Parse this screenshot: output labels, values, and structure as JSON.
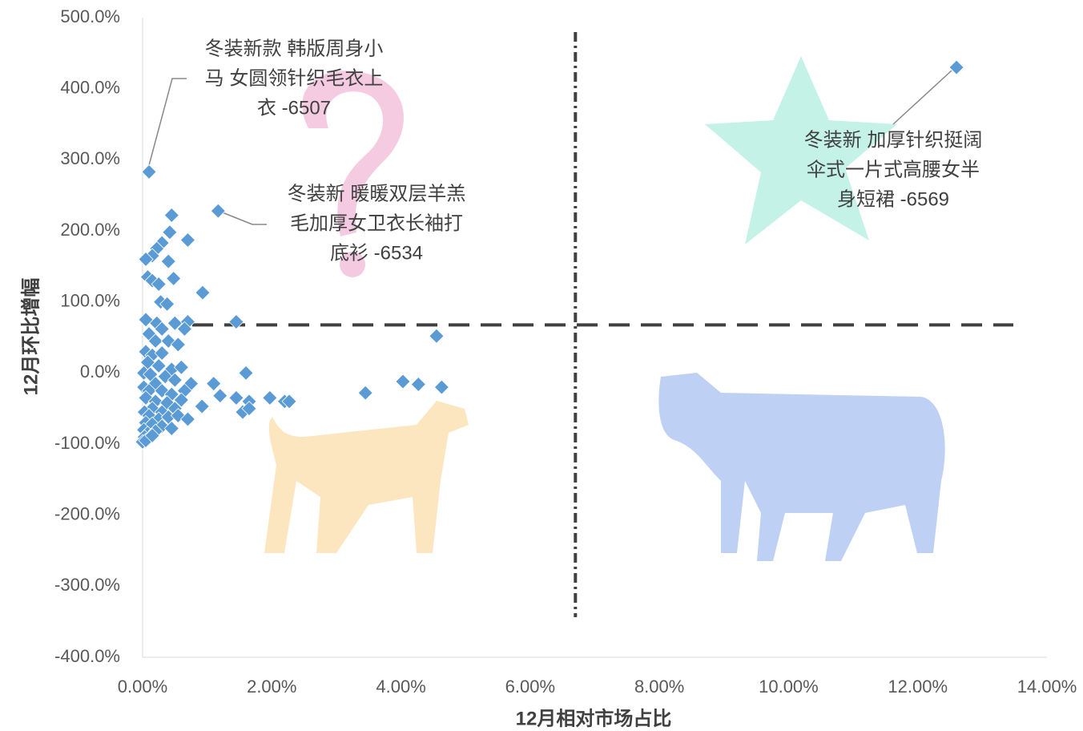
{
  "chart_data": {
    "type": "scatter",
    "xlabel": "12月相对市场占比",
    "ylabel": "12月环比增幅",
    "xlim": [
      0,
      14
    ],
    "ylim": [
      -400,
      500
    ],
    "xticks": [
      {
        "value": 0,
        "label": "0.00%"
      },
      {
        "value": 2,
        "label": "2.00%"
      },
      {
        "value": 4,
        "label": "4.00%"
      },
      {
        "value": 6,
        "label": "6.00%"
      },
      {
        "value": 8,
        "label": "8.00%"
      },
      {
        "value": 10,
        "label": "10.00%"
      },
      {
        "value": 12,
        "label": "12.00%"
      },
      {
        "value": 14,
        "label": "14.00%"
      }
    ],
    "yticks": [
      {
        "value": -400,
        "label": "-400.0%"
      },
      {
        "value": -300,
        "label": "-300.0%"
      },
      {
        "value": -200,
        "label": "-200.0%"
      },
      {
        "value": -100,
        "label": "-100.0%"
      },
      {
        "value": 0,
        "label": "0.0%"
      },
      {
        "value": 100,
        "label": "100.0%"
      },
      {
        "value": 200,
        "label": "200.0%"
      },
      {
        "value": 300,
        "label": "300.0%"
      },
      {
        "value": 400,
        "label": "400.0%"
      },
      {
        "value": 500,
        "label": "500.0%"
      }
    ],
    "color": "#5b9bd5",
    "reference_lines": {
      "x": 6.7,
      "y": 67.6
    },
    "x": [
      0.1,
      1.17,
      0.45,
      0.42,
      0.7,
      0.3,
      0.22,
      0.15,
      0.05,
      0.4,
      0.08,
      0.15,
      0.48,
      0.25,
      0.93,
      0.28,
      0.38,
      1.45,
      0.05,
      0.22,
      0.3,
      0.5,
      0.7,
      0.65,
      0.1,
      0.2,
      0.4,
      0.55,
      0.05,
      0.15,
      0.3,
      0.08,
      0.25,
      0.45,
      0.6,
      4.55,
      0.02,
      0.12,
      1.6,
      0.35,
      0.5,
      0.75,
      1.1,
      4.03,
      4.27,
      4.63,
      0.2,
      0.02,
      0.1,
      0.3,
      0.65,
      1.2,
      1.45,
      1.97,
      3.45,
      0.45,
      0.05,
      0.2,
      0.38,
      0.6,
      2.2,
      2.27,
      1.65,
      0.15,
      0.3,
      0.5,
      1.55,
      1.65,
      0.03,
      0.1,
      0.25,
      0.4,
      0.55,
      0.7,
      0.92,
      0.05,
      0.15,
      0.3,
      0.45,
      0.02,
      0.08,
      0.2,
      0.03,
      0.1,
      0,
      0.05,
      0.15,
      12.6
    ],
    "values": [
      283,
      228,
      222,
      198,
      187,
      183,
      175,
      165,
      160,
      157,
      135,
      130,
      133,
      125,
      113,
      100,
      97,
      72,
      75,
      70,
      62,
      70,
      72,
      62,
      55,
      45,
      45,
      40,
      30,
      25,
      28,
      15,
      10,
      5,
      8,
      52,
      0,
      -2,
      0,
      -5,
      -10,
      -15,
      -15,
      -12,
      -16,
      -20,
      -15,
      -20,
      -25,
      -25,
      -25,
      -32,
      -35,
      -35,
      -28,
      -30,
      -35,
      -40,
      -42,
      -38,
      -40,
      -40,
      -40,
      -50,
      -55,
      -50,
      -55,
      -50,
      -55,
      -60,
      -65,
      -62,
      -60,
      -65,
      -47,
      -70,
      -72,
      -75,
      -78,
      -80,
      -85,
      -82,
      -90,
      -92,
      -97,
      -95,
      -88,
      430
    ],
    "annotations": [
      [
        "冬装新款 韩版周身小",
        "马 女圆领针织毛衣上",
        "衣 -6507"
      ],
      [
        "冬装新 暖暖双层羊羔",
        "毛加厚女卫衣长袖打",
        "底衫 -6534"
      ],
      [
        "冬装新 加厚针织挺阔",
        "伞式一片式高腰女半",
        "身短裙  -6569"
      ]
    ]
  }
}
